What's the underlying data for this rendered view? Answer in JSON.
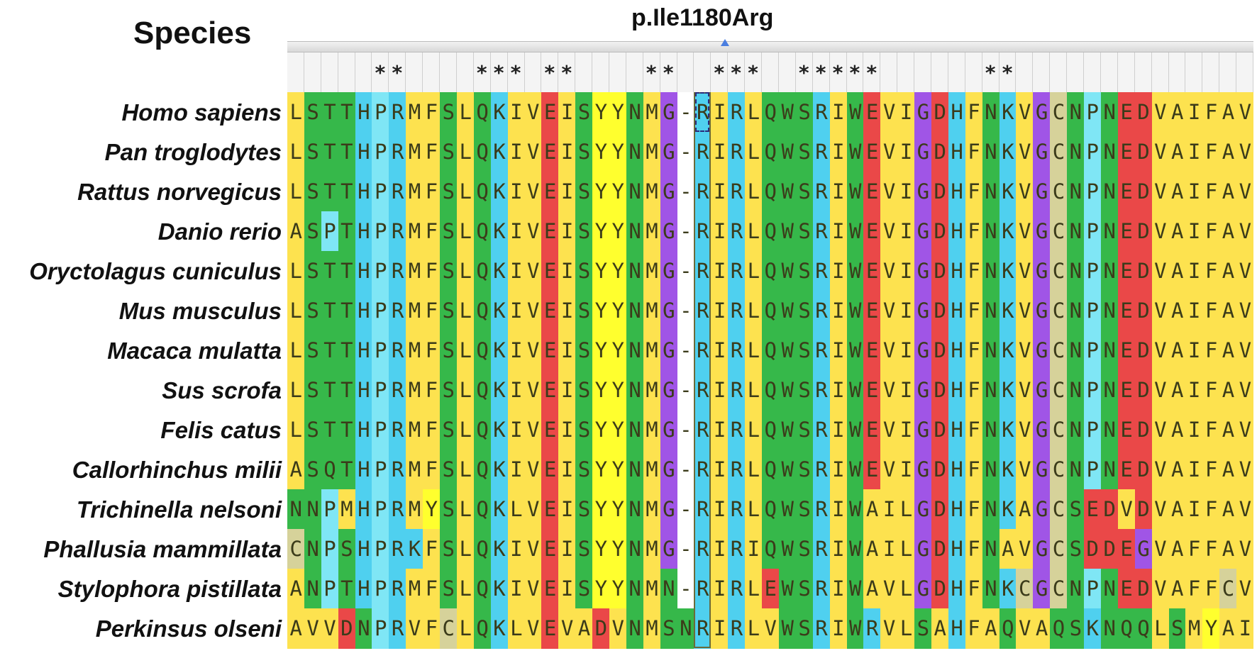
{
  "header": {
    "species_label": "Species"
  },
  "mutation": {
    "label": "p.Ile1180Arg",
    "column_index": 24
  },
  "conservation": [
    " ",
    "",
    "",
    "",
    "",
    "*",
    "*",
    "",
    "",
    "",
    "",
    "*",
    "*",
    "*",
    "",
    "*",
    "*",
    "",
    "",
    "",
    "",
    "*",
    "*",
    "",
    "",
    "*",
    "*",
    "*",
    "",
    "",
    "*",
    "*",
    "*",
    "*",
    "*",
    "",
    "",
    "",
    "",
    "",
    "",
    "*",
    "*",
    "",
    "",
    "",
    "",
    "",
    "",
    "",
    "",
    "",
    "",
    "",
    "",
    "",
    ""
  ],
  "species": [
    {
      "name": "Homo sapiens",
      "sequence": "LSTTHPRMFSLQKIVEISYYNMG-RIRLQWSRIWEVIGDHFNKVGCNPNEDVAIFAV"
    },
    {
      "name": "Pan troglodytes",
      "sequence": "LSTTHPRMFSLQKIVEISYYNMG-RIRLQWSRIWEVIGDHFNKVGCNPNEDVAIFAV"
    },
    {
      "name": "Rattus norvegicus",
      "sequence": "LSTTHPRMFSLQKIVEISYYNMG-RIRLQWSRIWEVIGDHFNKVGCNPNEDVAIFAV"
    },
    {
      "name": "Danio rerio",
      "sequence": "ASPTHPRMFSLQKIVEISYYNMG-RIRLQWSRIWEVIGDHFNKVGCNPNEDVAIFAV"
    },
    {
      "name": "Oryctolagus cuniculus",
      "sequence": "LSTTHPRMFSLQKIVEISYYNMG-RIRLQWSRIWEVIGDHFNKVGCNPNEDVAIFAV"
    },
    {
      "name": "Mus musculus",
      "sequence": "LSTTHPRMFSLQKIVEISYYNMG-RIRLQWSRIWEVIGDHFNKVGCNPNEDVAIFAV"
    },
    {
      "name": "Macaca mulatta",
      "sequence": "LSTTHPRMFSLQKIVEISYYNMG-RIRLQWSRIWEVIGDHFNKVGCNPNEDVAIFAV"
    },
    {
      "name": "Sus scrofa",
      "sequence": "LSTTHPRMFSLQKIVEISYYNMG-RIRLQWSRIWEVIGDHFNKVGCNPNEDVAIFAV"
    },
    {
      "name": "Felis catus",
      "sequence": "LSTTHPRMFSLQKIVEISYYNMG-RIRLQWSRIWEVIGDHFNKVGCNPNEDVAIFAV"
    },
    {
      "name": "Callorhinchus milii",
      "sequence": "ASQTHPRMFSLQKIVEISYYNMG-RIRLQWSRIWEVIGDHFNKVGCNPNEDVAIFAV"
    },
    {
      "name": "Trichinella nelsoni",
      "sequence": "NNPMHPRMYSLQKLVEISYYNMG-RIRLQWSRIWAILGDHFNKAGCSEDVDVAIFAV"
    },
    {
      "name": "Phallusia mammillata",
      "sequence": "CNPSHPRKFSLQKIVEISYYNMG-RIRIQWSRIWAILGDHFNAVGCSDDEGVAFFAV"
    },
    {
      "name": "Stylophora pistillata",
      "sequence": "ANPTHPRMFSLQKIVEISYYNMN-RIRLEWSRIWAVLGDHFNKCGCNPNEDVAFFCV"
    },
    {
      "name": "Perkinsus olseni",
      "sequence": "AVVDNPRVFCLQKLVEVADVNMSNRIRLVWSRIWRVLSAHFAQVAQSKNQQLSMYAI"
    }
  ],
  "residue_colors": {
    "hydrophobic": "#fde24f",
    "aromatic_yellow": "#ffff2e",
    "polar_green": "#36b84a",
    "light_green": "#a8f05a",
    "cyan": "#4fd0ef",
    "light_cyan": "#7fe6f5",
    "red": "#ea4848",
    "purple": "#a055e6",
    "gap": "#ffffff",
    "tan": "#d6d29a",
    "text": "#3b3b1a"
  }
}
